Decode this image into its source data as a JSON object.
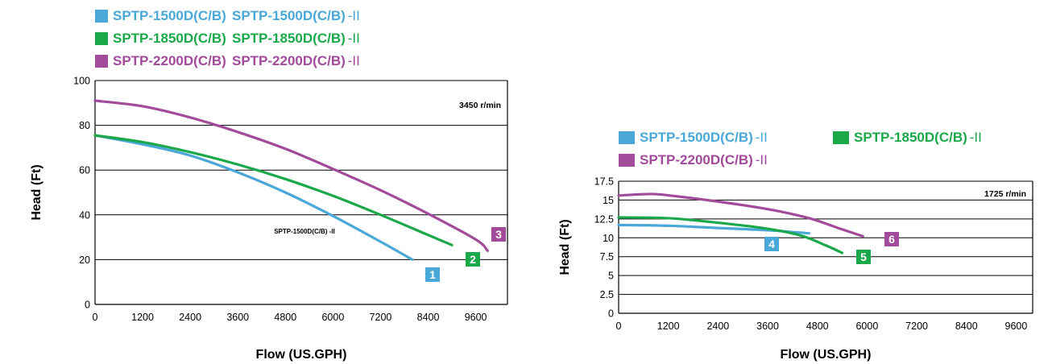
{
  "colors": {
    "blue": "#4aa8d8",
    "green": "#1aa84a",
    "purple": "#a24b9b",
    "axis": "#000000"
  },
  "chart_data": [
    {
      "type": "line",
      "legend": [
        {
          "swatch": "blue",
          "parts": [
            {
              "text": "SPTP-1500D(C/B)",
              "color": "blue"
            },
            {
              "text": "SPTP-1500D(C/B)",
              "color": "blue"
            },
            {
              "text": "-II",
              "color": "blue"
            }
          ]
        },
        {
          "swatch": "green",
          "parts": [
            {
              "text": "SPTP-1850D(C/B)",
              "color": "green"
            },
            {
              "text": "SPTP-1850D(C/B)",
              "color": "green"
            },
            {
              "text": "-II",
              "color": "green"
            }
          ]
        },
        {
          "swatch": "purple",
          "parts": [
            {
              "text": "SPTP-2200D(C/B)",
              "color": "purple"
            },
            {
              "text": "SPTP-2200D(C/B)",
              "color": "purple"
            },
            {
              "text": "-II",
              "color": "purple"
            }
          ]
        }
      ],
      "xlabel": "Flow (US.GPH)",
      "ylabel": "Head (Ft)",
      "xlim": [
        0,
        10400
      ],
      "ylim": [
        0,
        100
      ],
      "x_ticks": [
        0,
        1200,
        2400,
        3600,
        4800,
        6000,
        7200,
        8400,
        9600
      ],
      "y_ticks": [
        0,
        20,
        40,
        60,
        80,
        100
      ],
      "grid": "horizontal",
      "annotations": [
        {
          "text": "3450 r/min"
        },
        {
          "text": "SPTP-1500D(C/B) -II"
        }
      ],
      "series": [
        {
          "label": "1",
          "color": "blue",
          "x": [
            0,
            1200,
            2400,
            3600,
            4800,
            6000,
            7200,
            8000
          ],
          "y": [
            75.5,
            71.5,
            66.5,
            59,
            50,
            39.5,
            28,
            20
          ]
        },
        {
          "label": "2",
          "color": "green",
          "x": [
            0,
            1200,
            2400,
            3600,
            4800,
            6000,
            7200,
            8400,
            9000
          ],
          "y": [
            75.5,
            72.5,
            68,
            62.5,
            56,
            48.5,
            40,
            31,
            26.5
          ]
        },
        {
          "label": "3",
          "color": "purple",
          "x": [
            0,
            1200,
            2400,
            3600,
            4800,
            6000,
            7200,
            8400,
            9600,
            9900
          ],
          "y": [
            91,
            88.5,
            83.5,
            77,
            69.5,
            60.5,
            51,
            40.5,
            29,
            24
          ]
        }
      ]
    },
    {
      "type": "line",
      "legend": [
        {
          "swatch": "blue",
          "parts": [
            {
              "text": "SPTP-1500D(C/B)",
              "color": "blue"
            },
            {
              "text": "-II",
              "color": "blue"
            }
          ]
        },
        {
          "swatch": "green",
          "parts": [
            {
              "text": "SPTP-1850D(C/B)",
              "color": "green"
            },
            {
              "text": "-II",
              "color": "green"
            }
          ]
        },
        {
          "swatch": "purple",
          "parts": [
            {
              "text": "SPTP-2200D(C/B)",
              "color": "purple"
            },
            {
              "text": "-II",
              "color": "purple"
            }
          ]
        }
      ],
      "xlabel": "Flow (US.GPH)",
      "ylabel": "Head (Ft)",
      "xlim": [
        0,
        10000
      ],
      "ylim": [
        0,
        17.5
      ],
      "x_ticks": [
        0,
        1200,
        2400,
        3600,
        4800,
        6000,
        7200,
        8400,
        9600
      ],
      "y_ticks": [
        0,
        2.5,
        5,
        7.5,
        10,
        12.5,
        15,
        17.5
      ],
      "grid": "horizontal",
      "annotations": [
        {
          "text": "1725 r/min"
        }
      ],
      "series": [
        {
          "label": "4",
          "color": "blue",
          "x": [
            0,
            1200,
            2400,
            3600,
            4600
          ],
          "y": [
            11.7,
            11.6,
            11.3,
            11,
            10.6
          ]
        },
        {
          "label": "5",
          "color": "green",
          "x": [
            0,
            1200,
            2400,
            3600,
            4400,
            5000,
            5400
          ],
          "y": [
            12.7,
            12.6,
            12,
            11.2,
            10.3,
            9,
            8
          ]
        },
        {
          "label": "6",
          "color": "purple",
          "x": [
            0,
            800,
            1400,
            2400,
            3600,
            4600,
            5300,
            5900
          ],
          "y": [
            15.6,
            15.8,
            15.5,
            14.8,
            13.8,
            12.6,
            11.3,
            10.2
          ]
        }
      ]
    }
  ]
}
